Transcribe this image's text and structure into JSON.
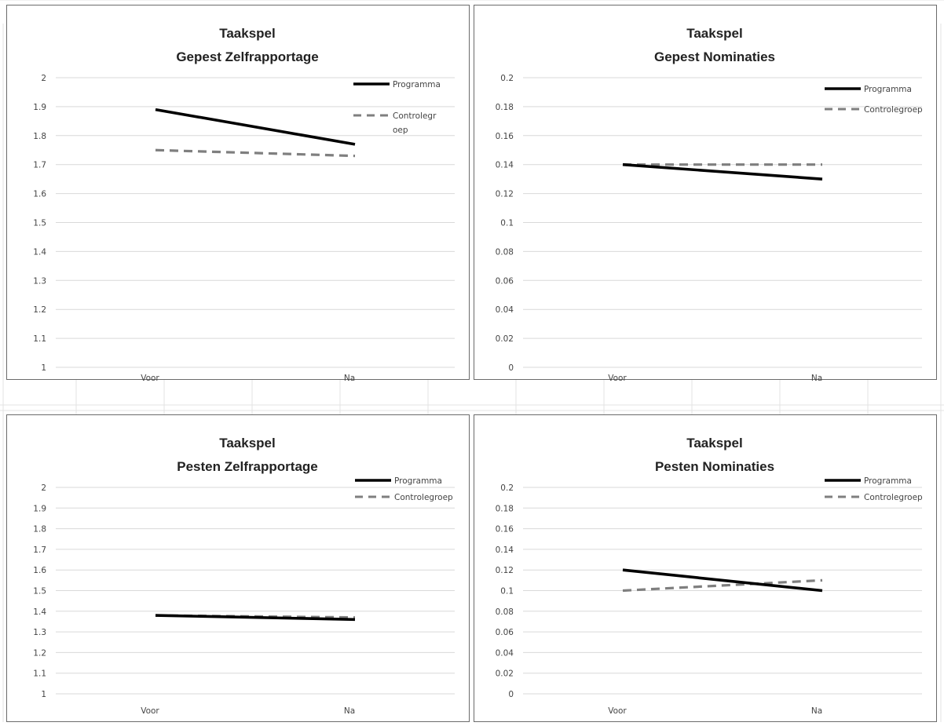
{
  "chart_data": [
    {
      "type": "line",
      "title": [
        "Taakspel",
        "Gepest Zelfrapportage"
      ],
      "categories": [
        "Voor",
        "Na"
      ],
      "ylim": [
        1,
        2
      ],
      "yticks": [
        "1",
        "1.1",
        "1.2",
        "1.3",
        "1.4",
        "1.5",
        "1.6",
        "1.7",
        "1.8",
        "1.9",
        "2"
      ],
      "grid": true,
      "legend_position": "top-right",
      "series": [
        {
          "name": "Programma",
          "legend_label": [
            "Programma"
          ],
          "values": [
            1.89,
            1.77
          ],
          "color": "#000000",
          "style": "solid"
        },
        {
          "name": "Controlegroep",
          "legend_label": [
            "Controlegr",
            "oep"
          ],
          "values": [
            1.75,
            1.73
          ],
          "color": "#7f7f7f",
          "style": "dashed"
        }
      ]
    },
    {
      "type": "line",
      "title": [
        "Taakspel",
        "Gepest Nominaties"
      ],
      "categories": [
        "Voor",
        "Na"
      ],
      "ylim": [
        0,
        0.2
      ],
      "yticks": [
        "0",
        "0.02",
        "0.04",
        "0.06",
        "0.08",
        "0.1",
        "0.12",
        "0.14",
        "0.16",
        "0.18",
        "0.2"
      ],
      "grid": true,
      "legend_position": "top-right",
      "series": [
        {
          "name": "Programma",
          "legend_label": [
            "Programma"
          ],
          "values": [
            0.14,
            0.13
          ],
          "color": "#000000",
          "style": "solid"
        },
        {
          "name": "Controlegroep",
          "legend_label": [
            "Controlegroep"
          ],
          "values": [
            0.14,
            0.14
          ],
          "color": "#7f7f7f",
          "style": "dashed"
        }
      ]
    },
    {
      "type": "line",
      "title": [
        "Taakspel",
        "Pesten Zelfrapportage"
      ],
      "categories": [
        "Voor",
        "Na"
      ],
      "ylim": [
        1,
        2
      ],
      "yticks": [
        "1",
        "1.1",
        "1.2",
        "1.3",
        "1.4",
        "1.5",
        "1.6",
        "1.7",
        "1.8",
        "1.9",
        "2"
      ],
      "grid": true,
      "legend_position": "top-right",
      "series": [
        {
          "name": "Programma",
          "legend_label": [
            "Programma"
          ],
          "values": [
            1.38,
            1.36
          ],
          "color": "#000000",
          "style": "solid"
        },
        {
          "name": "Controlegroep",
          "legend_label": [
            "Controlegroep"
          ],
          "values": [
            1.38,
            1.37
          ],
          "color": "#7f7f7f",
          "style": "dashed"
        }
      ]
    },
    {
      "type": "line",
      "title": [
        "Taakspel",
        "Pesten Nominaties"
      ],
      "categories": [
        "Voor",
        "Na"
      ],
      "ylim": [
        0,
        0.2
      ],
      "yticks": [
        "0",
        "0.02",
        "0.04",
        "0.06",
        "0.08",
        "0.1",
        "0.12",
        "0.14",
        "0.16",
        "0.18",
        "0.2"
      ],
      "grid": true,
      "legend_position": "top-right",
      "series": [
        {
          "name": "Programma",
          "legend_label": [
            "Programma"
          ],
          "values": [
            0.12,
            0.1
          ],
          "color": "#000000",
          "style": "solid"
        },
        {
          "name": "Controlegroep",
          "legend_label": [
            "Controlegroep"
          ],
          "values": [
            0.1,
            0.11
          ],
          "color": "#7f7f7f",
          "style": "dashed"
        }
      ]
    }
  ]
}
